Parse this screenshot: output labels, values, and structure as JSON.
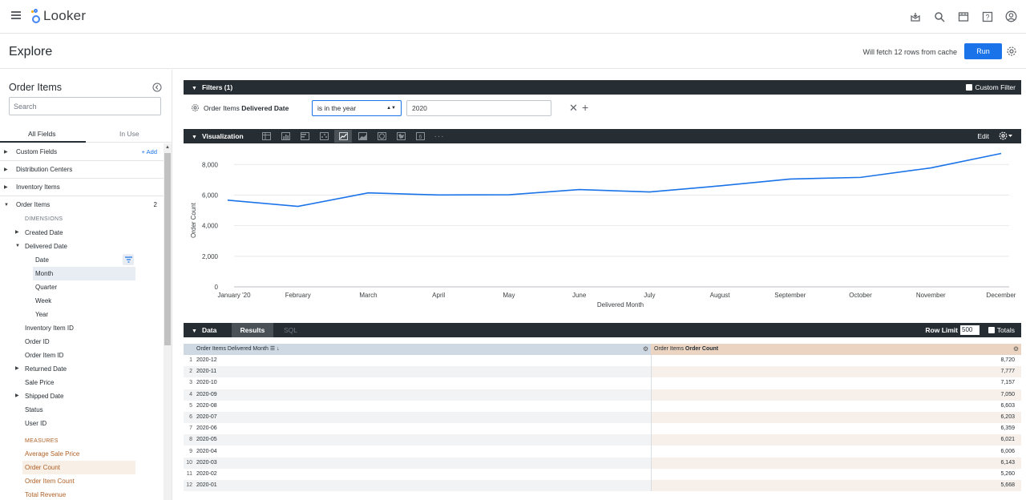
{
  "app": {
    "name": "Looker"
  },
  "header": {
    "title": "Explore",
    "cache_text": "Will fetch 12 rows from cache",
    "run_label": "Run"
  },
  "sidebar": {
    "title": "Order Items",
    "search_placeholder": "Search",
    "tabs": [
      "All Fields",
      "In Use"
    ],
    "groups": [
      {
        "label": "Custom Fields",
        "action": "+ Add"
      },
      {
        "label": "Distribution Centers"
      },
      {
        "label": "Inventory Items"
      },
      {
        "label": "Order Items",
        "count": "2"
      }
    ],
    "dimensions_head": "DIMENSIONS",
    "fields": {
      "created_date": "Created Date",
      "delivered_date": "Delivered Date",
      "date": "Date",
      "month": "Month",
      "quarter": "Quarter",
      "week": "Week",
      "year": "Year",
      "inventory_item_id": "Inventory Item ID",
      "order_id": "Order ID",
      "order_item_id": "Order Item ID",
      "returned_date": "Returned Date",
      "sale_price": "Sale Price",
      "shipped_date": "Shipped Date",
      "status": "Status",
      "user_id": "User ID"
    },
    "measures_head": "MEASURES",
    "measures": [
      "Average Sale Price",
      "Order Count",
      "Order Item Count",
      "Total Revenue"
    ]
  },
  "filters": {
    "bar_label": "Filters (1)",
    "custom_filter_label": "Custom Filter",
    "field_view": "Order Items",
    "field_name": "Delivered Date",
    "operator": "is in the year",
    "value": "2020"
  },
  "visualization": {
    "bar_label": "Visualization",
    "edit_label": "Edit"
  },
  "chart_data": {
    "type": "line",
    "categories": [
      "January '20",
      "February",
      "March",
      "April",
      "May",
      "June",
      "July",
      "August",
      "September",
      "October",
      "November",
      "December"
    ],
    "series": [
      {
        "values": [
          5668,
          5260,
          6143,
          6006,
          6021,
          6359,
          6203,
          6603,
          7050,
          7157,
          7777,
          8720
        ]
      }
    ],
    "xlabel": "Delivered Month",
    "ylabel": "Order Count",
    "ylim": [
      0,
      8800
    ],
    "yticks": [
      "0",
      "2,000",
      "4,000",
      "6,000",
      "8,000"
    ],
    "color": "#1a73e8",
    "grid": true
  },
  "data": {
    "bar_label": "Data",
    "tabs": [
      "Results",
      "SQL"
    ],
    "row_limit_label": "Row Limit",
    "row_limit_value": "500",
    "totals_label": "Totals",
    "columns": {
      "dim_view": "Order Items",
      "dim_field": "Delivered Month",
      "meas_view": "Order Items",
      "meas_field": "Order Count"
    },
    "rows": [
      {
        "n": "1",
        "month": "2020-12",
        "count": "8,720"
      },
      {
        "n": "2",
        "month": "2020-11",
        "count": "7,777"
      },
      {
        "n": "3",
        "month": "2020-10",
        "count": "7,157"
      },
      {
        "n": "4",
        "month": "2020-09",
        "count": "7,050"
      },
      {
        "n": "5",
        "month": "2020-08",
        "count": "6,603"
      },
      {
        "n": "6",
        "month": "2020-07",
        "count": "6,203"
      },
      {
        "n": "7",
        "month": "2020-06",
        "count": "6,359"
      },
      {
        "n": "8",
        "month": "2020-05",
        "count": "6,021"
      },
      {
        "n": "9",
        "month": "2020-04",
        "count": "6,006"
      },
      {
        "n": "10",
        "month": "2020-03",
        "count": "6,143"
      },
      {
        "n": "11",
        "month": "2020-02",
        "count": "5,260"
      },
      {
        "n": "12",
        "month": "2020-01",
        "count": "5,668"
      }
    ]
  }
}
